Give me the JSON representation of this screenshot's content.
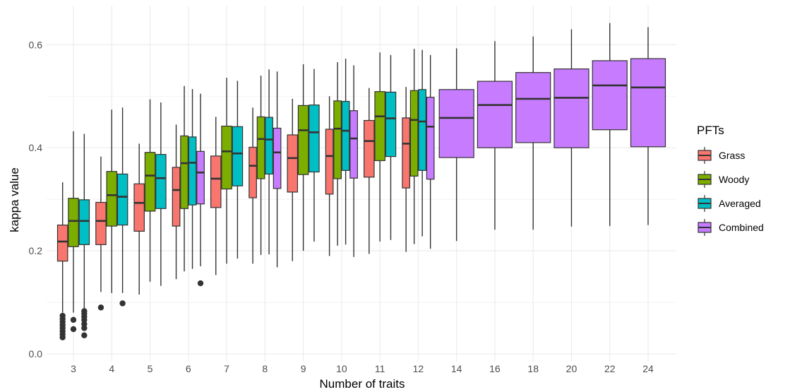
{
  "chart_data": {
    "type": "boxplot",
    "xlabel": "Number of traits",
    "ylabel": "kappa value",
    "ylim": [
      0,
      0.64
    ],
    "y_ticks": [
      0.0,
      0.2,
      0.4,
      0.6
    ],
    "y_tick_labels": [
      "0.0",
      "0.2",
      "0.4",
      "0.6"
    ],
    "grid": true,
    "legend": {
      "title": "PFTs",
      "position": "right"
    },
    "categories": [
      "3",
      "4",
      "5",
      "6",
      "7",
      "8",
      "9",
      "10",
      "11",
      "12",
      "14",
      "16",
      "18",
      "20",
      "22",
      "24"
    ],
    "series": [
      {
        "name": "Grass",
        "color": "#F8766D",
        "boxes": [
          {
            "x": "3",
            "min": 0.08,
            "q1": 0.18,
            "median": 0.218,
            "q3": 0.25,
            "max": 0.333,
            "outliers": [
              0.032,
              0.038,
              0.044,
              0.05,
              0.056,
              0.062,
              0.068,
              0.074
            ]
          },
          {
            "x": "4",
            "min": 0.12,
            "q1": 0.212,
            "median": 0.258,
            "q3": 0.294,
            "max": 0.383,
            "outliers": [
              0.09
            ]
          },
          {
            "x": "5",
            "min": 0.115,
            "q1": 0.238,
            "median": 0.293,
            "q3": 0.33,
            "max": 0.408,
            "outliers": []
          },
          {
            "x": "6",
            "min": 0.145,
            "q1": 0.248,
            "median": 0.318,
            "q3": 0.362,
            "max": 0.445,
            "outliers": []
          },
          {
            "x": "7",
            "min": 0.153,
            "q1": 0.284,
            "median": 0.34,
            "q3": 0.384,
            "max": 0.46,
            "outliers": []
          },
          {
            "x": "8",
            "min": 0.175,
            "q1": 0.303,
            "median": 0.365,
            "q3": 0.401,
            "max": 0.478,
            "outliers": []
          },
          {
            "x": "9",
            "min": 0.18,
            "q1": 0.314,
            "median": 0.38,
            "q3": 0.425,
            "max": 0.495,
            "outliers": []
          },
          {
            "x": "10",
            "min": 0.19,
            "q1": 0.31,
            "median": 0.384,
            "q3": 0.436,
            "max": 0.5,
            "outliers": []
          },
          {
            "x": "11",
            "min": 0.194,
            "q1": 0.343,
            "median": 0.413,
            "q3": 0.453,
            "max": 0.516,
            "outliers": []
          },
          {
            "x": "12",
            "min": 0.198,
            "q1": 0.322,
            "median": 0.408,
            "q3": 0.458,
            "max": 0.518,
            "outliers": []
          }
        ]
      },
      {
        "name": "Woody",
        "color": "#7CAE00",
        "boxes": [
          {
            "x": "3",
            "min": 0.08,
            "q1": 0.208,
            "median": 0.258,
            "q3": 0.302,
            "max": 0.432,
            "outliers": [
              0.048,
              0.066
            ]
          },
          {
            "x": "4",
            "min": 0.118,
            "q1": 0.248,
            "median": 0.308,
            "q3": 0.354,
            "max": 0.474,
            "outliers": []
          },
          {
            "x": "5",
            "min": 0.14,
            "q1": 0.277,
            "median": 0.346,
            "q3": 0.391,
            "max": 0.494,
            "outliers": []
          },
          {
            "x": "6",
            "min": 0.16,
            "q1": 0.282,
            "median": 0.37,
            "q3": 0.423,
            "max": 0.52,
            "outliers": []
          },
          {
            "x": "7",
            "min": 0.175,
            "q1": 0.32,
            "median": 0.393,
            "q3": 0.442,
            "max": 0.536,
            "outliers": []
          },
          {
            "x": "8",
            "min": 0.192,
            "q1": 0.34,
            "median": 0.417,
            "q3": 0.46,
            "max": 0.54,
            "outliers": []
          },
          {
            "x": "9",
            "min": 0.2,
            "q1": 0.348,
            "median": 0.434,
            "q3": 0.482,
            "max": 0.562,
            "outliers": []
          },
          {
            "x": "10",
            "min": 0.21,
            "q1": 0.34,
            "median": 0.437,
            "q3": 0.491,
            "max": 0.566,
            "outliers": []
          },
          {
            "x": "11",
            "min": 0.218,
            "q1": 0.375,
            "median": 0.461,
            "q3": 0.509,
            "max": 0.585,
            "outliers": []
          },
          {
            "x": "12",
            "min": 0.213,
            "q1": 0.345,
            "median": 0.454,
            "q3": 0.511,
            "max": 0.592,
            "outliers": []
          }
        ]
      },
      {
        "name": "Averaged",
        "color": "#00BFC4",
        "boxes": [
          {
            "x": "3",
            "min": 0.085,
            "q1": 0.212,
            "median": 0.258,
            "q3": 0.299,
            "max": 0.427,
            "outliers": [
              0.036,
              0.05,
              0.058,
              0.066,
              0.072,
              0.078,
              0.083
            ]
          },
          {
            "x": "4",
            "min": 0.118,
            "q1": 0.25,
            "median": 0.305,
            "q3": 0.349,
            "max": 0.478,
            "outliers": [
              0.098
            ]
          },
          {
            "x": "5",
            "min": 0.132,
            "q1": 0.282,
            "median": 0.341,
            "q3": 0.387,
            "max": 0.488,
            "outliers": []
          },
          {
            "x": "6",
            "min": 0.165,
            "q1": 0.289,
            "median": 0.371,
            "q3": 0.421,
            "max": 0.514,
            "outliers": []
          },
          {
            "x": "7",
            "min": 0.185,
            "q1": 0.326,
            "median": 0.389,
            "q3": 0.441,
            "max": 0.53,
            "outliers": []
          },
          {
            "x": "8",
            "min": 0.193,
            "q1": 0.349,
            "median": 0.416,
            "q3": 0.459,
            "max": 0.552,
            "outliers": []
          },
          {
            "x": "9",
            "min": 0.218,
            "q1": 0.353,
            "median": 0.43,
            "q3": 0.483,
            "max": 0.553,
            "outliers": []
          },
          {
            "x": "10",
            "min": 0.212,
            "q1": 0.356,
            "median": 0.433,
            "q3": 0.49,
            "max": 0.573,
            "outliers": []
          },
          {
            "x": "11",
            "min": 0.221,
            "q1": 0.383,
            "median": 0.457,
            "q3": 0.508,
            "max": 0.58,
            "outliers": []
          },
          {
            "x": "12",
            "min": 0.228,
            "q1": 0.356,
            "median": 0.451,
            "q3": 0.513,
            "max": 0.59,
            "outliers": []
          }
        ]
      },
      {
        "name": "Combined",
        "color": "#C77CFF",
        "boxes": [
          {
            "x": "6",
            "min": 0.17,
            "q1": 0.291,
            "median": 0.352,
            "q3": 0.393,
            "max": 0.505,
            "outliers": [
              0.137
            ]
          },
          {
            "x": "8",
            "min": 0.168,
            "q1": 0.321,
            "median": 0.391,
            "q3": 0.438,
            "max": 0.548,
            "outliers": []
          },
          {
            "x": "10",
            "min": 0.188,
            "q1": 0.341,
            "median": 0.418,
            "q3": 0.472,
            "max": 0.56,
            "outliers": []
          },
          {
            "x": "12",
            "min": 0.204,
            "q1": 0.339,
            "median": 0.441,
            "q3": 0.498,
            "max": 0.58,
            "outliers": []
          },
          {
            "x": "14",
            "min": 0.219,
            "q1": 0.381,
            "median": 0.458,
            "q3": 0.513,
            "max": 0.593,
            "outliers": []
          },
          {
            "x": "16",
            "min": 0.241,
            "q1": 0.4,
            "median": 0.483,
            "q3": 0.529,
            "max": 0.607,
            "outliers": []
          },
          {
            "x": "18",
            "min": 0.241,
            "q1": 0.41,
            "median": 0.495,
            "q3": 0.546,
            "max": 0.616,
            "outliers": []
          },
          {
            "x": "20",
            "min": 0.247,
            "q1": 0.4,
            "median": 0.497,
            "q3": 0.553,
            "max": 0.63,
            "outliers": []
          },
          {
            "x": "22",
            "min": 0.248,
            "q1": 0.435,
            "median": 0.521,
            "q3": 0.569,
            "max": 0.642,
            "outliers": []
          },
          {
            "x": "24",
            "min": 0.25,
            "q1": 0.402,
            "median": 0.517,
            "q3": 0.573,
            "max": 0.634,
            "outliers": []
          }
        ]
      }
    ]
  }
}
